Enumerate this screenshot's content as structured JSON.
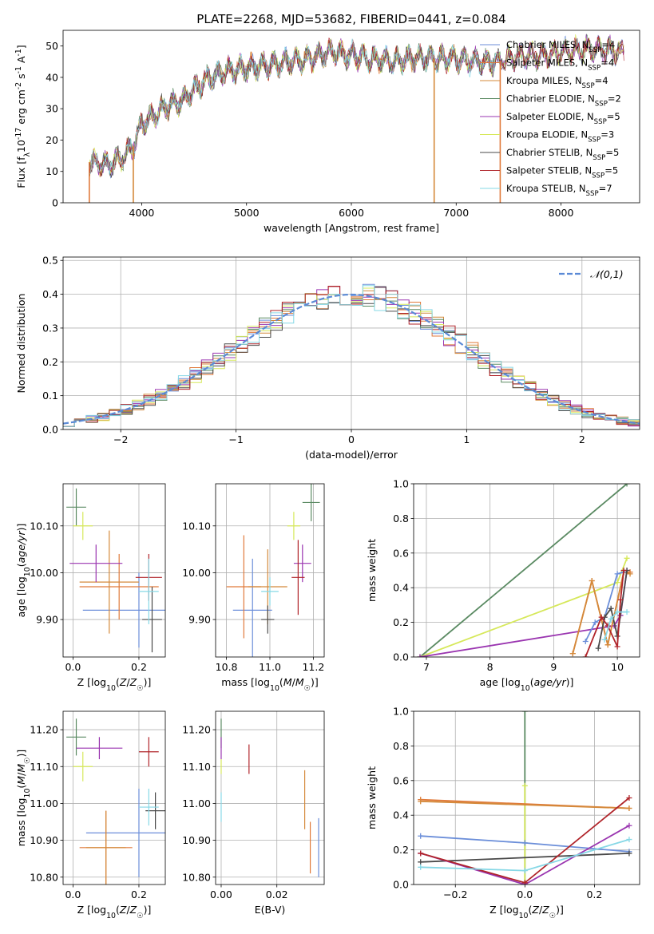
{
  "figure": {
    "title": "PLATE=2268, MJD=53682, FIBERID=0441, z=0.084"
  },
  "models": [
    {
      "label": "Chabrier MILES, N$_{SSP}$=4",
      "name": "Chabrier MILES",
      "nssp": "4",
      "color": "#6b8ed9"
    },
    {
      "label": "Salpeter MILES, N$_{SSP}$=4",
      "name": "Salpeter MILES",
      "nssp": "4",
      "color": "#e07a3b"
    },
    {
      "label": "Kroupa MILES, N$_{SSP}$=4",
      "name": "Kroupa MILES",
      "nssp": "4",
      "color": "#d4893a"
    },
    {
      "label": "Chabrier ELODIE, N$_{SSP}$=2",
      "name": "Chabrier ELODIE",
      "nssp": "2",
      "color": "#5a8a62"
    },
    {
      "label": "Salpeter ELODIE, N$_{SSP}$=5",
      "name": "Salpeter ELODIE",
      "nssp": "5",
      "color": "#9a35b0"
    },
    {
      "label": "Kroupa ELODIE, N$_{SSP}$=3",
      "name": "Kroupa ELODIE",
      "nssp": "3",
      "color": "#d6e85a"
    },
    {
      "label": "Chabrier STELIB, N$_{SSP}$=5",
      "name": "Chabrier STELIB",
      "nssp": "5",
      "color": "#4a4a4a"
    },
    {
      "label": "Salpeter STELIB, N$_{SSP}$=5",
      "name": "Salpeter STELIB",
      "nssp": "5",
      "color": "#b0242a"
    },
    {
      "label": "Kroupa STELIB, N$_{SSP}$=7",
      "name": "Kroupa STELIB",
      "nssp": "7",
      "color": "#86d8e6"
    }
  ],
  "chart_data": [
    {
      "type": "line",
      "id": "spectrum",
      "xlabel": "wavelength [Angstrom, rest frame]",
      "ylabel": "Flux [f$_\\lambda$10$^{-17}$ erg cm$^{-2}$ s$^{-1}$ A$^{-1}$]",
      "xlim": [
        3250,
        8750
      ],
      "ylim": [
        0,
        55
      ],
      "xticks": [
        4000,
        5000,
        6000,
        7000,
        8000
      ],
      "yticks": [
        0,
        10,
        20,
        30,
        40,
        50
      ],
      "grid": false,
      "legend": "right",
      "continuum": {
        "x": [
          3500,
          3650,
          3800,
          3920,
          4000,
          4200,
          4400,
          4600,
          4800,
          5000,
          5200,
          5400,
          5600,
          5800,
          6000,
          6200,
          6400,
          6600,
          6800,
          7000,
          7200,
          7400,
          7600,
          7800,
          8000,
          8200,
          8400,
          8600
        ],
        "y": [
          13,
          12,
          14,
          18,
          25,
          30,
          33,
          39,
          42,
          43,
          44,
          45,
          46,
          48,
          47,
          46,
          45,
          46,
          46,
          46,
          45,
          45,
          47,
          47,
          48,
          49,
          49,
          48
        ]
      },
      "drops": [
        {
          "model": 1,
          "x": 3500
        },
        {
          "model": 2,
          "x": 3920
        },
        {
          "model": 2,
          "x": 6790
        },
        {
          "model": 1,
          "x": 7420
        }
      ]
    },
    {
      "type": "histogram",
      "id": "residuals",
      "xlabel": "(data-model)/error",
      "ylabel": "Normed distribution",
      "xlim": [
        -2.5,
        2.5
      ],
      "ylim": [
        0,
        0.51
      ],
      "xticks": [
        -2,
        -1,
        0,
        1,
        2
      ],
      "yticks": [
        0.0,
        0.1,
        0.2,
        0.3,
        0.4,
        0.5
      ],
      "grid": true,
      "legend": "top-right",
      "reference": {
        "label": "$\\mathcal{N}(0,1)$",
        "color": "#5b8ad6"
      },
      "bin_width": 0.1
    },
    {
      "type": "scatter",
      "id": "age-vs-Z",
      "xlabel": "Z [log$_{10}$($Z$/$Z_\\odot$)]",
      "ylabel": "age  [log$_{10}$($age/yr$)]",
      "xlim": [
        -0.03,
        0.28
      ],
      "ylim": [
        9.82,
        10.19
      ],
      "xticks": [
        0.0,
        0.2
      ],
      "yticks": [
        9.9,
        10.0,
        10.1
      ],
      "grid": true,
      "points": [
        {
          "model": 0,
          "x": 0.2,
          "y": 9.92,
          "xerr": 0.17,
          "yerr": 0.08
        },
        {
          "model": 1,
          "x": 0.14,
          "y": 9.97,
          "xerr": 0.12,
          "yerr": 0.07
        },
        {
          "model": 2,
          "x": 0.11,
          "y": 9.98,
          "xerr": 0.09,
          "yerr": 0.11
        },
        {
          "model": 3,
          "x": 0.01,
          "y": 10.14,
          "xerr": 0.03,
          "yerr": 0.04
        },
        {
          "model": 4,
          "x": 0.07,
          "y": 10.02,
          "xerr": 0.08,
          "yerr": 0.04
        },
        {
          "model": 5,
          "x": 0.03,
          "y": 10.1,
          "xerr": 0.03,
          "yerr": 0.03
        },
        {
          "model": 6,
          "x": 0.24,
          "y": 9.9,
          "xerr": 0.03,
          "yerr": 0.07
        },
        {
          "model": 7,
          "x": 0.23,
          "y": 9.99,
          "xerr": 0.04,
          "yerr": 0.05
        },
        {
          "model": 8,
          "x": 0.23,
          "y": 9.96,
          "xerr": 0.03,
          "yerr": 0.07
        }
      ]
    },
    {
      "type": "scatter",
      "id": "age-vs-mass",
      "xlabel": "mass [log$_{10}$($M$/$M_\\odot$)]",
      "ylabel": "",
      "xlim": [
        10.75,
        11.25
      ],
      "ylim": [
        9.82,
        10.19
      ],
      "xticks": [
        10.8,
        11.0,
        11.2
      ],
      "yticks": [
        9.9,
        10.0,
        10.1
      ],
      "grid": true,
      "points": [
        {
          "model": 0,
          "x": 10.92,
          "y": 9.92,
          "xerr": 0.09,
          "yerr": 0.11
        },
        {
          "model": 1,
          "x": 10.88,
          "y": 9.97,
          "xerr": 0.08,
          "yerr": 0.11
        },
        {
          "model": 2,
          "x": 10.99,
          "y": 9.97,
          "xerr": 0.09,
          "yerr": 0.08
        },
        {
          "model": 3,
          "x": 11.19,
          "y": 10.15,
          "xerr": 0.04,
          "yerr": 0.04
        },
        {
          "model": 4,
          "x": 11.15,
          "y": 10.02,
          "xerr": 0.04,
          "yerr": 0.04
        },
        {
          "model": 5,
          "x": 11.11,
          "y": 10.1,
          "xerr": 0.03,
          "yerr": 0.03
        },
        {
          "model": 6,
          "x": 10.99,
          "y": 9.9,
          "xerr": 0.03,
          "yerr": 0.03
        },
        {
          "model": 7,
          "x": 11.13,
          "y": 9.99,
          "xerr": 0.03,
          "yerr": 0.08
        },
        {
          "model": 8,
          "x": 11.0,
          "y": 9.96,
          "xerr": 0.04,
          "yerr": 0.03
        }
      ]
    },
    {
      "type": "line",
      "id": "mass-weight-vs-age",
      "xlabel": "age  [log$_{10}$($age/yr$)]",
      "ylabel": "mass weight",
      "xlim": [
        6.8,
        10.35
      ],
      "ylim": [
        0,
        1.0
      ],
      "xticks": [
        7,
        8,
        9,
        10
      ],
      "yticks": [
        0.0,
        0.2,
        0.4,
        0.6,
        0.8,
        1.0
      ],
      "grid": true,
      "series": [
        {
          "model": 3,
          "x": [
            6.9,
            10.15
          ],
          "y": [
            0.0,
            1.0
          ]
        },
        {
          "model": 5,
          "x": [
            6.9,
            10.0,
            10.15
          ],
          "y": [
            0.0,
            0.43,
            0.57
          ]
        },
        {
          "model": 4,
          "x": [
            6.9,
            9.95,
            10.05,
            10.15
          ],
          "y": [
            0.0,
            0.18,
            0.24,
            0.5
          ]
        },
        {
          "model": 1,
          "x": [
            9.3,
            9.6,
            9.85,
            10.1,
            10.2
          ],
          "y": [
            0.02,
            0.44,
            0.07,
            0.49,
            0.49
          ]
        },
        {
          "model": 2,
          "x": [
            9.3,
            9.6,
            9.85,
            10.1,
            10.2
          ],
          "y": [
            0.02,
            0.44,
            0.07,
            0.49,
            0.48
          ]
        },
        {
          "model": 0,
          "x": [
            9.5,
            9.65,
            9.8,
            10.0,
            10.1
          ],
          "y": [
            0.09,
            0.2,
            0.23,
            0.48,
            0.49
          ]
        },
        {
          "model": 6,
          "x": [
            9.7,
            9.8,
            9.9,
            10.0,
            10.15
          ],
          "y": [
            0.05,
            0.23,
            0.28,
            0.12,
            0.5
          ]
        },
        {
          "model": 7,
          "x": [
            9.5,
            9.75,
            9.85,
            10.0,
            10.05,
            10.1
          ],
          "y": [
            0.0,
            0.23,
            0.18,
            0.06,
            0.33,
            0.5
          ]
        },
        {
          "model": 8,
          "x": [
            9.8,
            9.9,
            10.0,
            10.15
          ],
          "y": [
            0.1,
            0.22,
            0.26,
            0.26
          ]
        }
      ]
    },
    {
      "type": "scatter",
      "id": "mass-vs-Z",
      "xlabel": "Z [log$_{10}$($Z$/$Z_\\odot$)]",
      "ylabel": "mass [log$_{10}$($M$/$M_\\odot$)]",
      "xlim": [
        -0.03,
        0.28
      ],
      "ylim": [
        10.78,
        11.25
      ],
      "xticks": [
        0.0,
        0.2
      ],
      "yticks": [
        10.8,
        10.9,
        11.0,
        11.1,
        11.2
      ],
      "grid": true,
      "points": [
        {
          "model": 0,
          "x": 0.2,
          "y": 10.92,
          "xerr": 0.16,
          "yerr": 0.12
        },
        {
          "model": 1,
          "x": 0.1,
          "y": 10.88,
          "xerr": 0.08,
          "yerr": 0.1
        },
        {
          "model": 2,
          "x": 0.1,
          "y": 10.88,
          "xerr": 0.06,
          "yerr": 0.1
        },
        {
          "model": 3,
          "x": 0.01,
          "y": 11.18,
          "xerr": 0.03,
          "yerr": 0.05
        },
        {
          "model": 4,
          "x": 0.08,
          "y": 11.15,
          "xerr": 0.07,
          "yerr": 0.03
        },
        {
          "model": 5,
          "x": 0.03,
          "y": 11.1,
          "xerr": 0.03,
          "yerr": 0.04
        },
        {
          "model": 6,
          "x": 0.25,
          "y": 10.98,
          "xerr": 0.03,
          "yerr": 0.05
        },
        {
          "model": 7,
          "x": 0.23,
          "y": 11.14,
          "xerr": 0.03,
          "yerr": 0.04
        },
        {
          "model": 8,
          "x": 0.23,
          "y": 10.99,
          "xerr": 0.03,
          "yerr": 0.05
        }
      ]
    },
    {
      "type": "scatter",
      "id": "mass-vs-ebv",
      "xlabel": "E(B-V)",
      "ylabel": "",
      "xlim": [
        -0.002,
        0.037
      ],
      "ylim": [
        10.78,
        11.25
      ],
      "xticks": [
        0.0,
        0.02
      ],
      "yticks": [
        10.8,
        10.9,
        11.0,
        11.1,
        11.2
      ],
      "grid": true,
      "points": [
        {
          "model": 0,
          "x": 0.035,
          "y": 10.88,
          "xerr": 0.0,
          "yerr": 0.08
        },
        {
          "model": 1,
          "x": 0.032,
          "y": 10.88,
          "xerr": 0.0,
          "yerr": 0.07
        },
        {
          "model": 3,
          "x": 0.0,
          "y": 11.19,
          "xerr": 0.0,
          "yerr": 0.04
        },
        {
          "model": 4,
          "x": 0.0,
          "y": 11.15,
          "xerr": 0.0,
          "yerr": 0.03
        },
        {
          "model": 5,
          "x": 0.0,
          "y": 11.1,
          "xerr": 0.0,
          "yerr": 0.02
        },
        {
          "model": 7,
          "x": 0.01,
          "y": 11.12,
          "xerr": 0.0,
          "yerr": 0.04
        },
        {
          "model": 8,
          "x": 0.0,
          "y": 10.99,
          "xerr": 0.0,
          "yerr": 0.04
        },
        {
          "model": 2,
          "x": 0.03,
          "y": 11.01,
          "xerr": 0.0,
          "yerr": 0.08
        }
      ]
    },
    {
      "type": "line",
      "id": "mass-weight-vs-Z",
      "xlabel": "Z [log$_{10}$($Z$/$Z_\\odot$)]",
      "ylabel": "mass weight",
      "xlim": [
        -0.32,
        0.33
      ],
      "ylim": [
        0,
        1.0
      ],
      "xticks": [
        -0.2,
        0.0,
        0.2
      ],
      "yticks": [
        0.0,
        0.2,
        0.4,
        0.6,
        0.8,
        1.0
      ],
      "grid": true,
      "series": [
        {
          "model": 3,
          "x": [
            0.0,
            0.0
          ],
          "y": [
            0.0,
            1.0
          ]
        },
        {
          "model": 5,
          "x": [
            0.0,
            0.0
          ],
          "y": [
            0.0,
            0.57
          ]
        },
        {
          "model": 1,
          "x": [
            -0.3,
            0.3
          ],
          "y": [
            0.49,
            0.44
          ]
        },
        {
          "model": 2,
          "x": [
            -0.3,
            0.3
          ],
          "y": [
            0.48,
            0.44
          ]
        },
        {
          "model": 0,
          "x": [
            -0.3,
            0.0,
            0.3
          ],
          "y": [
            0.28,
            0.24,
            0.19
          ]
        },
        {
          "model": 6,
          "x": [
            -0.3,
            0.3
          ],
          "y": [
            0.13,
            0.18
          ]
        },
        {
          "model": 4,
          "x": [
            -0.3,
            0.0,
            0.3
          ],
          "y": [
            0.18,
            0.0,
            0.34
          ]
        },
        {
          "model": 7,
          "x": [
            -0.3,
            0.0,
            0.3
          ],
          "y": [
            0.18,
            0.01,
            0.5
          ]
        },
        {
          "model": 8,
          "x": [
            -0.3,
            0.0,
            0.3
          ],
          "y": [
            0.1,
            0.08,
            0.26
          ]
        }
      ]
    }
  ]
}
